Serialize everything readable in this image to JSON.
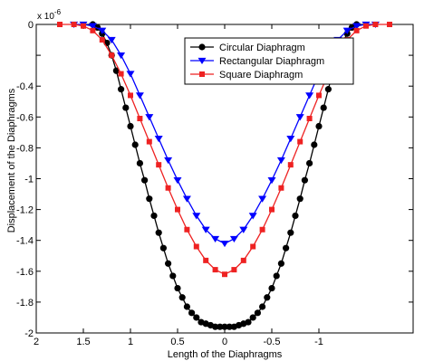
{
  "chart_data": {
    "type": "line",
    "title": "",
    "xlabel": "Length of the Diaphragms",
    "ylabel": "Displacement of the Diaphragms",
    "y_exponent_label": "x 10",
    "y_exponent_power": "-6",
    "x_reversed": true,
    "xlim": [
      2,
      -2
    ],
    "ylim": [
      -2,
      0
    ],
    "x_ticks": [
      2,
      1.5,
      1,
      0.5,
      0,
      -0.5,
      -1
    ],
    "x_tick_labels": [
      "2",
      "1.5",
      "1",
      "0.5",
      "0",
      "-0.5",
      "-1"
    ],
    "y_ticks": [
      0,
      -0.2,
      -0.4,
      -0.6,
      -0.8,
      -1,
      -1.2,
      -1.4,
      -1.6,
      -1.8,
      -2
    ],
    "y_tick_labels": [
      "0",
      "",
      "-0.4",
      "-0.6",
      "-0.8",
      "-1",
      "-1.2",
      "-1.4",
      "-1.6",
      "-1.8",
      "-2"
    ],
    "legend_position": "top-right",
    "grid": false,
    "series": [
      {
        "name": "Circular Diaphragm",
        "color": "#000000",
        "marker": "circle",
        "x": [
          1.4,
          1.35,
          1.3,
          1.25,
          1.2,
          1.15,
          1.1,
          1.05,
          1.0,
          0.95,
          0.9,
          0.85,
          0.8,
          0.75,
          0.7,
          0.65,
          0.6,
          0.55,
          0.5,
          0.45,
          0.4,
          0.35,
          0.3,
          0.25,
          0.2,
          0.15,
          0.1,
          0.05,
          0,
          -0.05,
          -0.1,
          -0.15,
          -0.2,
          -0.25,
          -0.3,
          -0.35,
          -0.4,
          -0.45,
          -0.5,
          -0.55,
          -0.6,
          -0.65,
          -0.7,
          -0.75,
          -0.8,
          -0.85,
          -0.9,
          -0.95,
          -1.0,
          -1.05,
          -1.1,
          -1.15,
          -1.2,
          -1.25,
          -1.3,
          -1.35,
          -1.4
        ],
        "y": [
          0,
          -0.02,
          -0.06,
          -0.12,
          -0.2,
          -0.3,
          -0.42,
          -0.54,
          -0.66,
          -0.78,
          -0.9,
          -1.01,
          -1.13,
          -1.24,
          -1.35,
          -1.45,
          -1.55,
          -1.63,
          -1.71,
          -1.77,
          -1.83,
          -1.87,
          -1.9,
          -1.93,
          -1.94,
          -1.95,
          -1.96,
          -1.96,
          -1.96,
          -1.96,
          -1.96,
          -1.95,
          -1.94,
          -1.93,
          -1.9,
          -1.87,
          -1.83,
          -1.77,
          -1.71,
          -1.63,
          -1.55,
          -1.45,
          -1.35,
          -1.24,
          -1.13,
          -1.01,
          -0.9,
          -0.78,
          -0.66,
          -0.54,
          -0.42,
          -0.3,
          -0.2,
          -0.12,
          -0.06,
          -0.02,
          0
        ]
      },
      {
        "name": "Rectangular Diaphragm",
        "color": "#0000ff",
        "marker": "triangle-down",
        "x": [
          1.6,
          1.5,
          1.4,
          1.3,
          1.2,
          1.1,
          1.0,
          0.9,
          0.8,
          0.7,
          0.6,
          0.5,
          0.4,
          0.3,
          0.2,
          0.1,
          0,
          -0.1,
          -0.2,
          -0.3,
          -0.4,
          -0.5,
          -0.6,
          -0.7,
          -0.8,
          -0.9,
          -1.0,
          -1.1,
          -1.2,
          -1.3,
          -1.4,
          -1.5,
          -1.6
        ],
        "y": [
          0,
          0,
          -0.01,
          -0.04,
          -0.1,
          -0.2,
          -0.32,
          -0.46,
          -0.6,
          -0.74,
          -0.88,
          -1.01,
          -1.13,
          -1.24,
          -1.33,
          -1.39,
          -1.42,
          -1.39,
          -1.33,
          -1.24,
          -1.13,
          -1.01,
          -0.88,
          -0.74,
          -0.6,
          -0.46,
          -0.32,
          -0.2,
          -0.1,
          -0.04,
          -0.01,
          0,
          0
        ]
      },
      {
        "name": "Square Diaphragm",
        "color": "#ee2222",
        "marker": "square",
        "x": [
          1.75,
          1.6,
          1.5,
          1.4,
          1.3,
          1.2,
          1.1,
          1.0,
          0.9,
          0.8,
          0.7,
          0.6,
          0.5,
          0.4,
          0.3,
          0.2,
          0.1,
          0,
          -0.1,
          -0.2,
          -0.3,
          -0.4,
          -0.5,
          -0.6,
          -0.7,
          -0.8,
          -0.9,
          -1.0,
          -1.1,
          -1.2,
          -1.3,
          -1.4,
          -1.5,
          -1.6,
          -1.75
        ],
        "y": [
          0,
          0,
          -0.01,
          -0.04,
          -0.1,
          -0.2,
          -0.32,
          -0.46,
          -0.61,
          -0.76,
          -0.91,
          -1.06,
          -1.2,
          -1.33,
          -1.44,
          -1.53,
          -1.59,
          -1.62,
          -1.59,
          -1.53,
          -1.44,
          -1.33,
          -1.2,
          -1.06,
          -0.91,
          -0.76,
          -0.61,
          -0.46,
          -0.32,
          -0.2,
          -0.1,
          -0.04,
          -0.01,
          0,
          0
        ]
      }
    ]
  }
}
